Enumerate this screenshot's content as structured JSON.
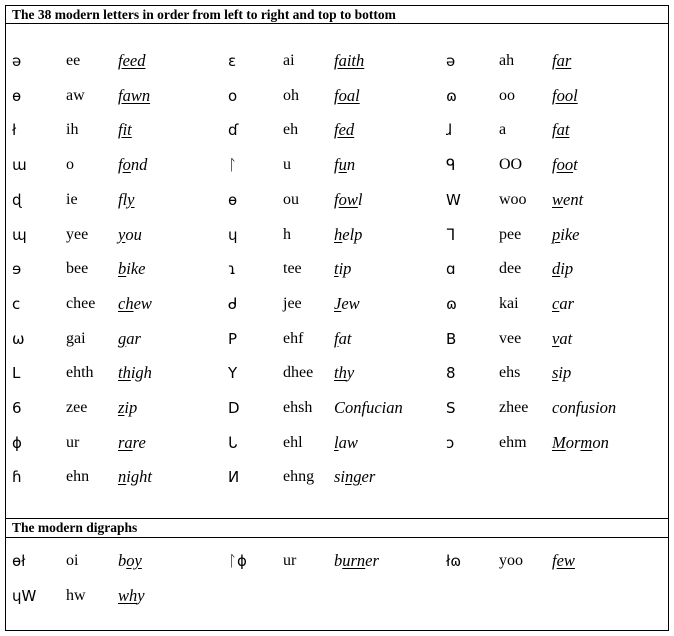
{
  "title": "The 38 modern letters in order from left to right and top to bottom",
  "digraphs_title": "The modern digraphs",
  "letters": [
    [
      {
        "g": "ə",
        "s": "ee",
        "w": [
          [
            "feed",
            true
          ]
        ]
      },
      {
        "g": "ɛ",
        "s": "ai",
        "w": [
          [
            "faith",
            true
          ]
        ]
      },
      {
        "g": "ə",
        "s": "ah",
        "w": [
          [
            "far",
            true
          ]
        ]
      }
    ],
    [
      {
        "g": "ɵ",
        "s": "aw",
        "w": [
          [
            "fawn",
            true
          ]
        ]
      },
      {
        "g": "o",
        "s": "oh",
        "w": [
          [
            "foal",
            true
          ]
        ]
      },
      {
        "g": "ɷ",
        "s": "oo",
        "w": [
          [
            "fool",
            true
          ]
        ]
      }
    ],
    [
      {
        "g": "ł",
        "s": "ih",
        "w": [
          [
            "fit",
            true
          ]
        ]
      },
      {
        "g": "ɗ",
        "s": "eh",
        "w": [
          [
            "fed",
            true
          ]
        ]
      },
      {
        "g": "ɺ",
        "s": "a",
        "w": [
          [
            "fat",
            true
          ]
        ]
      }
    ],
    [
      {
        "g": "ɯ",
        "s": "o",
        "w": [
          [
            "f",
            false
          ],
          [
            "o",
            true
          ],
          [
            "nd",
            false
          ]
        ]
      },
      {
        "g": "ᛚ",
        "s": "u",
        "w": [
          [
            "f",
            false
          ],
          [
            "u",
            true
          ],
          [
            "n",
            false
          ]
        ]
      },
      {
        "g": "ᑫ",
        "s": "OO",
        "w": [
          [
            "f",
            false
          ],
          [
            "oo",
            true
          ],
          [
            "t",
            false
          ]
        ]
      }
    ],
    [
      {
        "g": "ɖ",
        "s": "ie",
        "w": [
          [
            "fl",
            false
          ],
          [
            "y",
            true
          ]
        ]
      },
      {
        "g": "ɵ",
        "s": "ou",
        "w": [
          [
            "f",
            false
          ],
          [
            "ow",
            true
          ],
          [
            "l",
            false
          ]
        ]
      },
      {
        "g": "W",
        "s": "woo",
        "w": [
          [
            "w",
            true
          ],
          [
            "ent",
            false
          ]
        ]
      }
    ],
    [
      {
        "g": "ɰ",
        "s": "yee",
        "w": [
          [
            "y",
            true
          ],
          [
            "ou",
            false
          ]
        ]
      },
      {
        "g": "ɥ",
        "s": "h",
        "w": [
          [
            "h",
            true
          ],
          [
            "elp",
            false
          ]
        ]
      },
      {
        "g": "ᒣ",
        "s": "pee",
        "w": [
          [
            "p",
            true
          ],
          [
            "ike",
            false
          ]
        ]
      }
    ],
    [
      {
        "g": "ɘ",
        "s": "bee",
        "w": [
          [
            "b",
            true
          ],
          [
            "ike",
            false
          ]
        ]
      },
      {
        "g": "ɿ",
        "s": "tee",
        "w": [
          [
            "t",
            true
          ],
          [
            "ip",
            false
          ]
        ]
      },
      {
        "g": "ɑ",
        "s": "dee",
        "w": [
          [
            "d",
            true
          ],
          [
            "ip",
            false
          ]
        ]
      }
    ],
    [
      {
        "g": "c",
        "s": "chee",
        "w": [
          [
            "ch",
            true
          ],
          [
            "ew",
            false
          ]
        ]
      },
      {
        "g": "ᑯ",
        "s": "jee",
        "w": [
          [
            "J",
            true
          ],
          [
            "ew",
            false
          ]
        ]
      },
      {
        "g": "ɷ",
        "s": "kai",
        "w": [
          [
            "c",
            true
          ],
          [
            "ar",
            false
          ]
        ]
      }
    ],
    [
      {
        "g": "ω",
        "s": "gai",
        "w": [
          [
            "g",
            true
          ],
          [
            "ar",
            false
          ]
        ]
      },
      {
        "g": "P",
        "s": "ehf",
        "w": [
          [
            "f",
            true
          ],
          [
            "at",
            false
          ]
        ]
      },
      {
        "g": "B",
        "s": "vee",
        "w": [
          [
            "v",
            true
          ],
          [
            "at",
            false
          ]
        ]
      }
    ],
    [
      {
        "g": "L",
        "s": "ehth",
        "w": [
          [
            "th",
            true
          ],
          [
            "igh",
            false
          ]
        ]
      },
      {
        "g": "Y",
        "s": "dhee",
        "w": [
          [
            "th",
            true
          ],
          [
            "y",
            false
          ]
        ]
      },
      {
        "g": "8",
        "s": "ehs",
        "w": [
          [
            "s",
            true
          ],
          [
            "ip",
            false
          ]
        ]
      }
    ],
    [
      {
        "g": "6",
        "s": "zee",
        "w": [
          [
            "z",
            true
          ],
          [
            "ip",
            false
          ]
        ]
      },
      {
        "g": "D",
        "s": "ehsh",
        "w": [
          [
            "Conf",
            false
          ],
          [
            "u",
            false
          ],
          [
            "cian",
            false
          ]
        ]
      },
      {
        "g": "S",
        "s": "zhee",
        "w": [
          [
            "confu",
            false
          ],
          [
            "s",
            false
          ],
          [
            "ion",
            false
          ]
        ]
      }
    ],
    [
      {
        "g": "ɸ",
        "s": "ur",
        "w": [
          [
            "ra",
            true
          ],
          [
            "re",
            false
          ]
        ]
      },
      {
        "g": "ᒐ",
        "s": "ehl",
        "w": [
          [
            "l",
            true
          ],
          [
            "aw",
            false
          ]
        ]
      },
      {
        "g": "ɔ",
        "s": "ehm",
        "w": [
          [
            "M",
            true
          ],
          [
            "or",
            false
          ],
          [
            "m",
            true
          ],
          [
            "on",
            false
          ]
        ]
      }
    ],
    [
      {
        "g": "ɦ",
        "s": "ehn",
        "w": [
          [
            "n",
            true
          ],
          [
            "ight",
            false
          ]
        ]
      },
      {
        "g": "И",
        "s": "ehng",
        "w": [
          [
            "si",
            false
          ],
          [
            "ng",
            true
          ],
          [
            "er",
            false
          ]
        ]
      }
    ]
  ],
  "digraphs": [
    [
      {
        "g": "ɵł",
        "s": "oi",
        "w": [
          [
            "b",
            false
          ],
          [
            "oy",
            true
          ]
        ]
      },
      {
        "g": "ᛚɸ",
        "s": "ur",
        "w": [
          [
            "b",
            false
          ],
          [
            "urn",
            true
          ],
          [
            "er",
            false
          ]
        ]
      },
      {
        "g": "łɷ",
        "s": "yoo",
        "w": [
          [
            "f",
            false
          ],
          [
            "ew",
            true
          ]
        ]
      }
    ],
    [
      {
        "g": "ɥW",
        "s": "hw",
        "w": [
          [
            "wh",
            true
          ],
          [
            "y",
            false
          ]
        ]
      }
    ]
  ]
}
